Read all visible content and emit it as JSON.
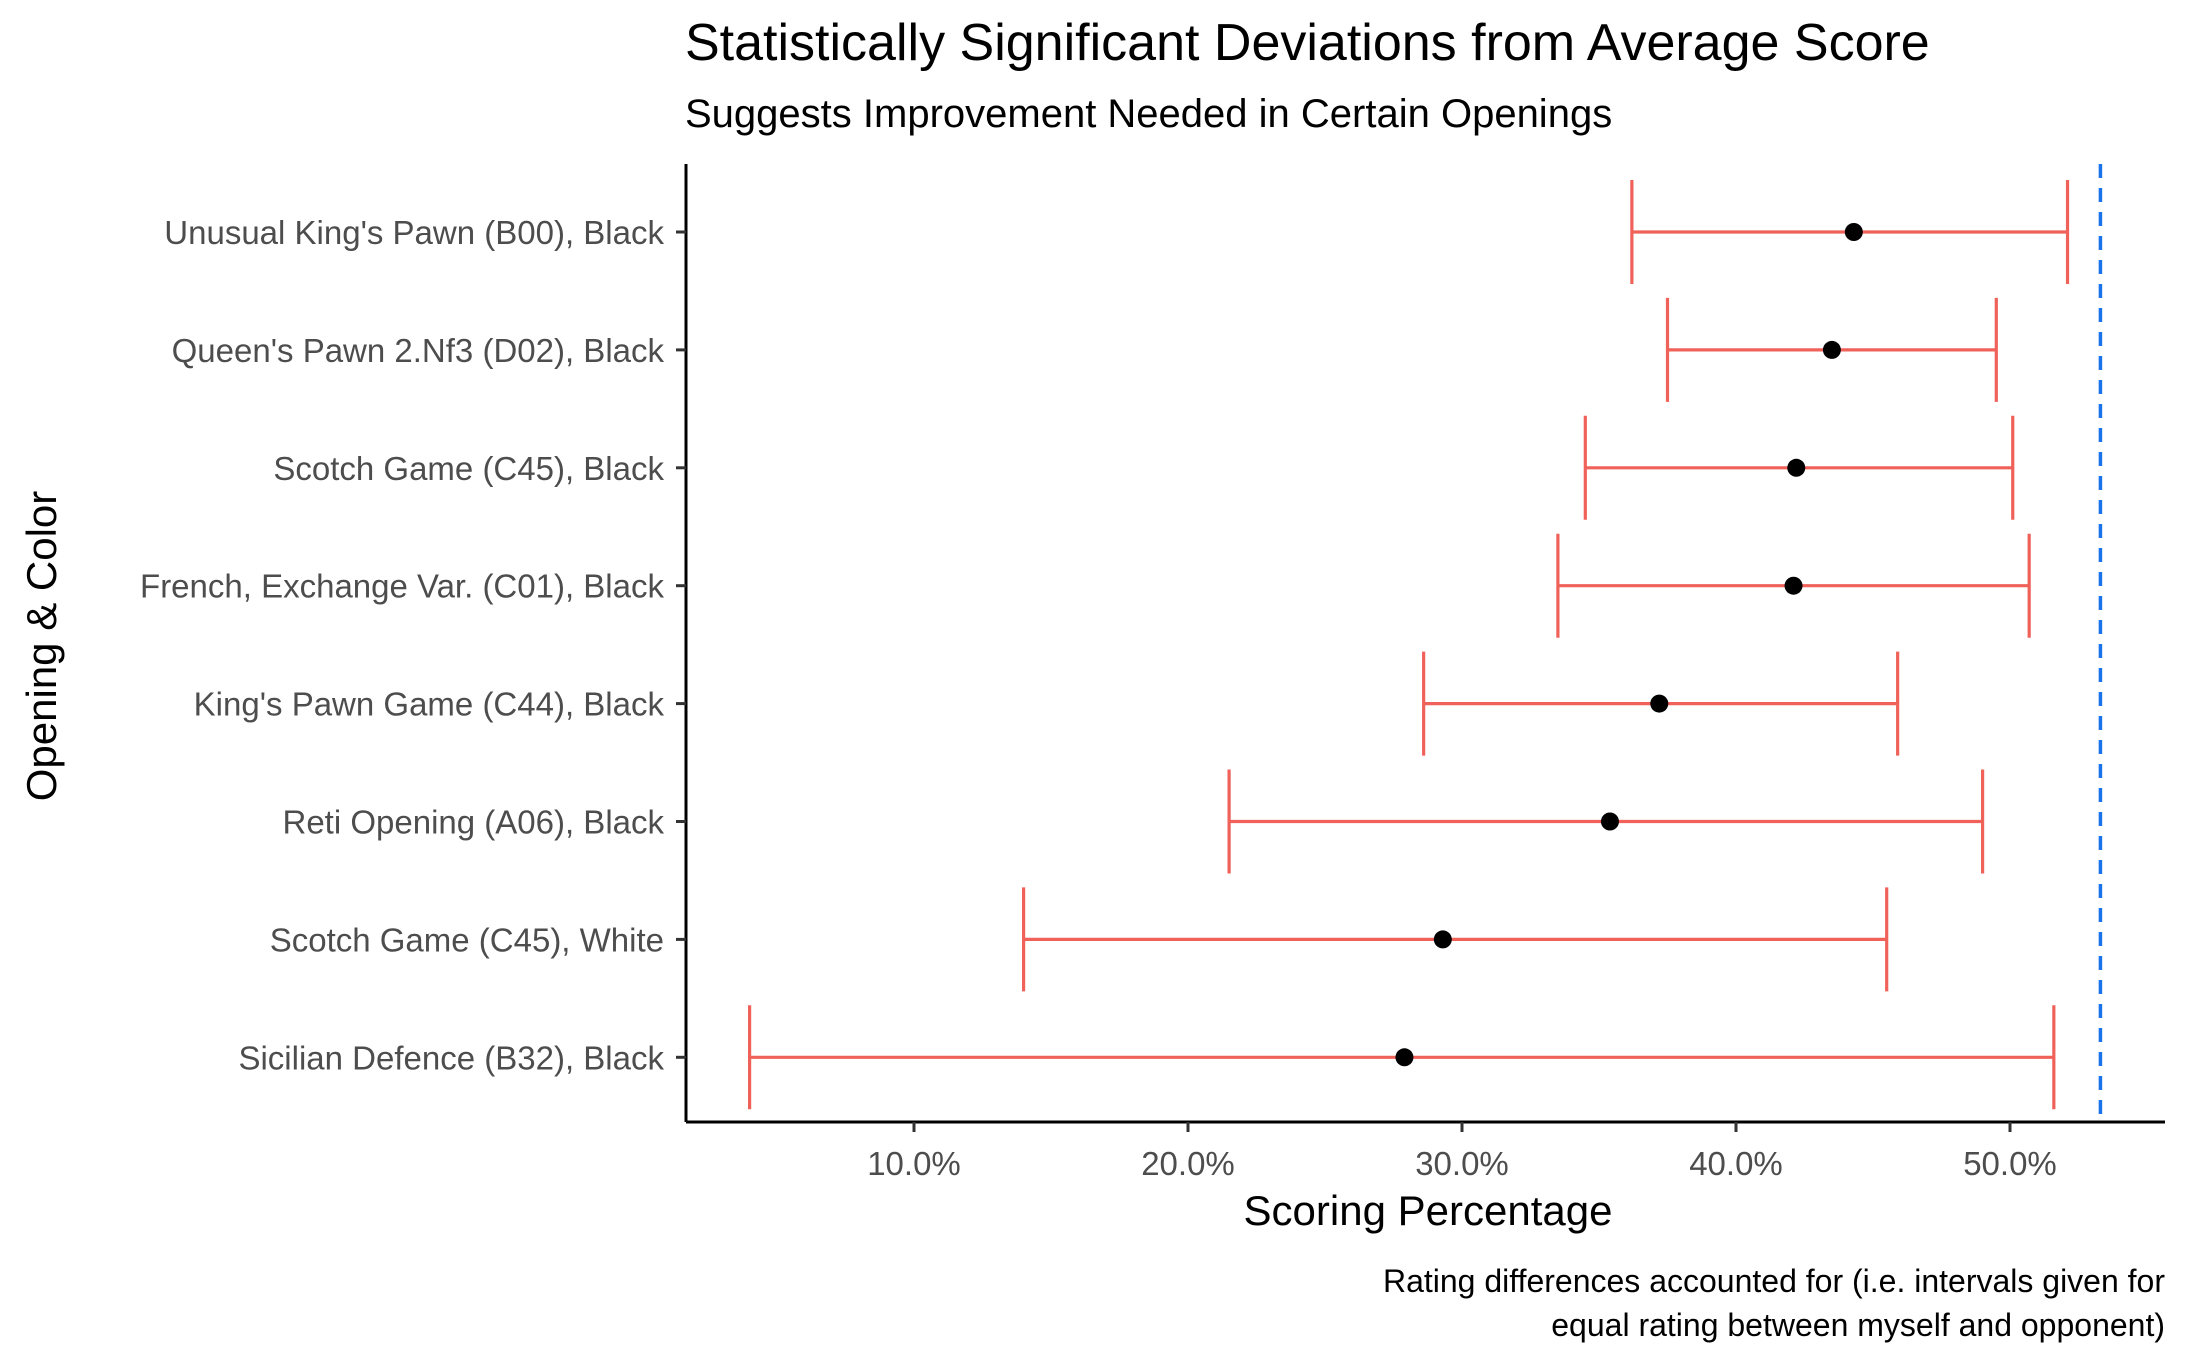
{
  "chart_data": {
    "type": "errorbar",
    "title": "Statistically Significant Deviations from Average Score",
    "subtitle": "Suggests Improvement Needed in Certain Openings",
    "xlabel": "Scoring Percentage",
    "ylabel": "Opening & Color",
    "caption_lines": [
      "Rating differences accounted for (i.e. intervals given for",
      "equal rating between myself and opponent)"
    ],
    "xlim": [
      0.0,
      0.5
    ],
    "x_ticks": [
      0.1,
      0.2,
      0.3,
      0.4,
      0.5
    ],
    "x_tick_labels": [
      "10.0%",
      "20.0%",
      "30.0%",
      "40.0%",
      "50.0%"
    ],
    "grid": false,
    "reference_line": {
      "x": 0.533,
      "style": "dashed",
      "color": "#1a73e8"
    },
    "colors": {
      "interval": "#f0615a",
      "point": "#000000",
      "axis": "#000000"
    },
    "categories": [
      "Unusual King's Pawn (B00), Black",
      "Queen's Pawn 2.Nf3 (D02), Black",
      "Scotch Game (C45), Black",
      "French, Exchange Var. (C01), Black",
      "King's Pawn Game (C44), Black",
      "Reti Opening (A06), Black",
      "Scotch Game (C45), White",
      "Sicilian Defence (B32), Black"
    ],
    "points": [
      0.443,
      0.435,
      0.422,
      0.421,
      0.372,
      0.354,
      0.293,
      0.279
    ],
    "lower": [
      0.362,
      0.375,
      0.345,
      0.335,
      0.286,
      0.215,
      0.14,
      0.04
    ],
    "upper": [
      0.521,
      0.495,
      0.501,
      0.507,
      0.459,
      0.49,
      0.455,
      0.516
    ]
  }
}
